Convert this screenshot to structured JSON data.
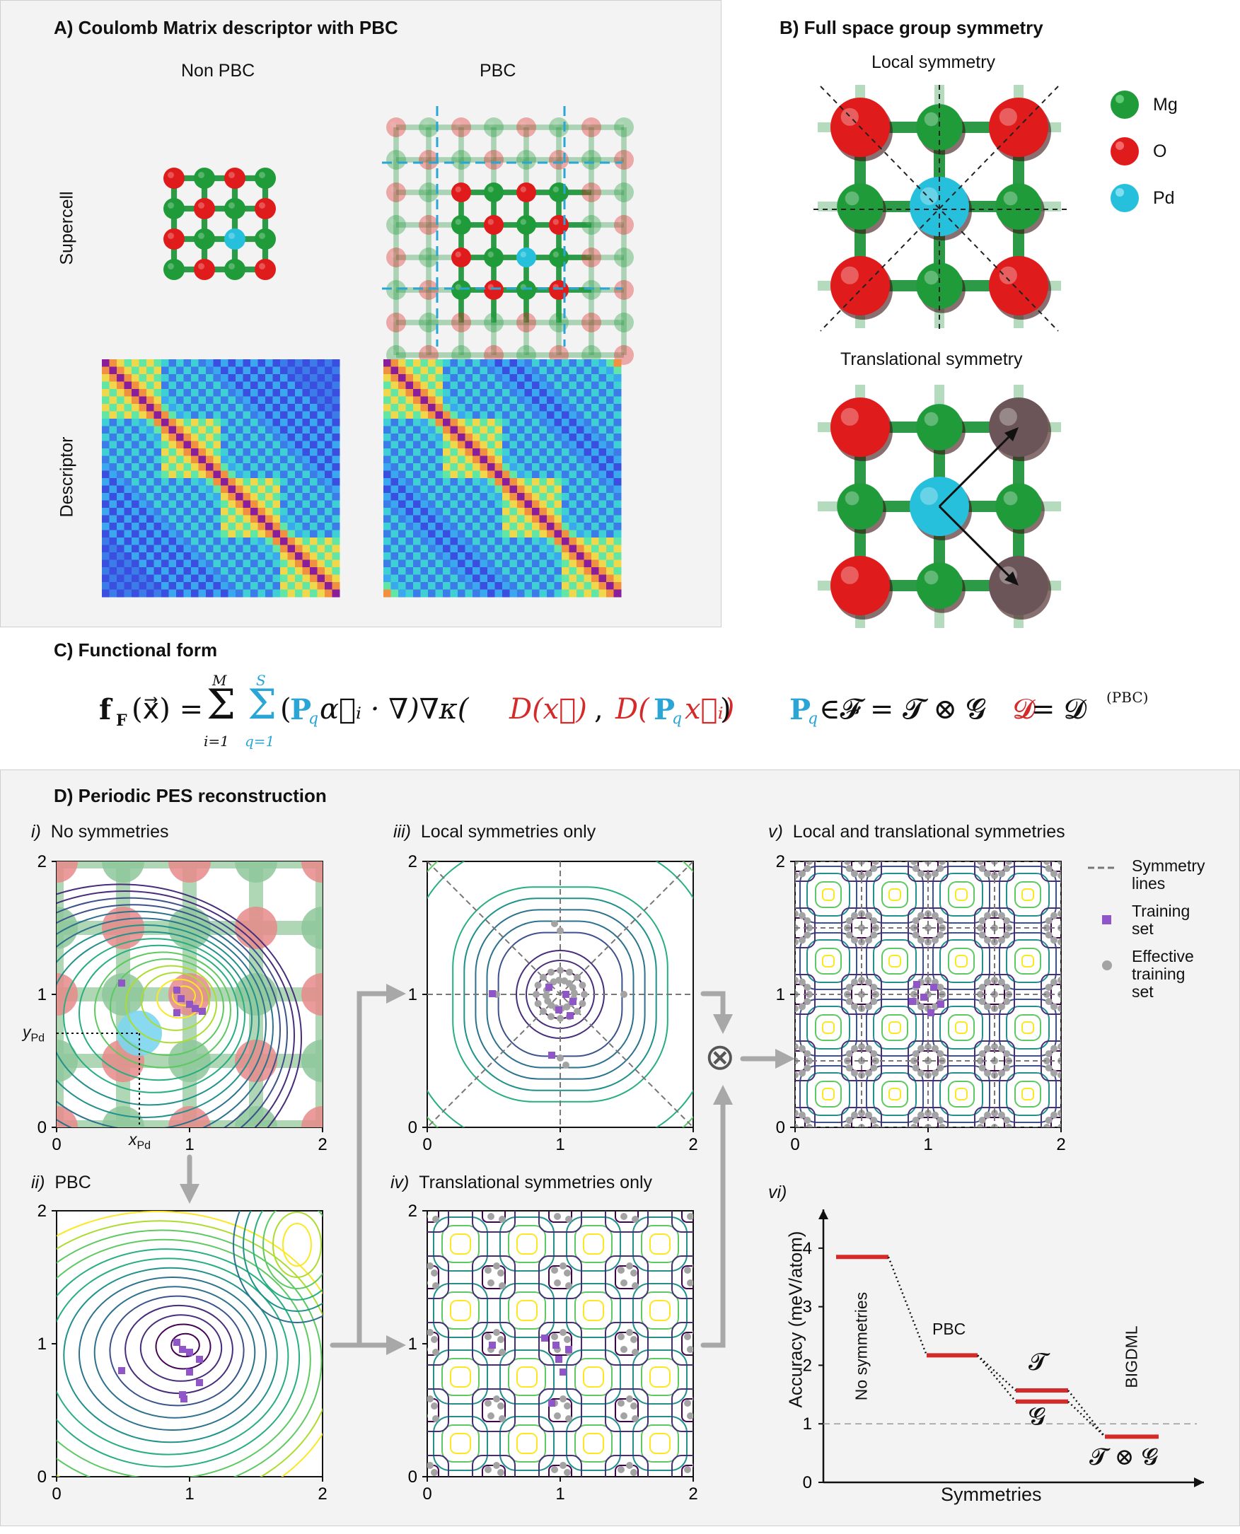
{
  "panelA": {
    "header": "A)    Coulomb Matrix descriptor with PBC",
    "col_nonpbc": "Non PBC",
    "col_pbc": "PBC",
    "row_supercell": "Supercell",
    "row_descriptor": "Descriptor"
  },
  "panelB": {
    "header": "B)    Full space group symmetry",
    "local": "Local symmetry",
    "translational": "Translational symmetry",
    "legend": [
      {
        "label": "Mg",
        "color": "#1f9b3a"
      },
      {
        "label": "O",
        "color": "#e01b1b"
      },
      {
        "label": "Pd",
        "color": "#27c0dc"
      }
    ]
  },
  "panelC": {
    "header": "C)    Functional form",
    "eq_main": "𝐟𝐅(x⃗) = Σᵢ₌₁ᴹ Σq=1ˢ (Pq α⃗ᵢ · ∇)∇κ(D(x⃗), D(Pq x⃗ᵢ))",
    "eq_lhs": "f",
    "eq_lhs_sub": "F",
    "eq_arg": "(x⃗) =",
    "sum1_top": "M",
    "sum1_bot": "i=1",
    "sum2_top": "S",
    "sum2_bot": "q=1",
    "eq_body1": "(",
    "eq_P": "P",
    "eq_q": "q",
    "eq_body2": "α⃗ᵢ · ∇)∇κ(",
    "eq_D1": "D(x⃗)",
    "eq_comma": ", ",
    "eq_D2a": "D(",
    "eq_D2b": "x⃗ᵢ)",
    "eq_close": ")",
    "eq_set": "∈𝓕 = 𝓣 ⊗ 𝓖",
    "eq_D": "𝓓",
    "eq_D_rhs": " = 𝓓",
    "eq_D_sup": "(PBC)"
  },
  "panelD": {
    "header": "D)    Periodic PES reconstruction",
    "sub_i": "i)",
    "title_i": "No symmetries",
    "sub_ii": "ii)",
    "title_ii": "PBC",
    "sub_iii": "iii)",
    "title_iii": "Local symmetries only",
    "sub_iv": "iv)",
    "title_iv": "Translational symmetries only",
    "sub_v": "v)",
    "title_v": "Local and translational symmetries",
    "sub_vi": "vi)",
    "x_pd": "x",
    "y_pd": "y",
    "pd_sub": "Pd",
    "ticks": [
      "0",
      "1",
      "2"
    ],
    "otimes": "⊗",
    "legend": [
      {
        "label": "Symmetry\nlines"
      },
      {
        "label": "Training\nset"
      },
      {
        "label": "Effective\ntraining\nset"
      }
    ],
    "legend_sym_1": "Symmetry",
    "legend_sym_2": "lines",
    "legend_train_1": "Training",
    "legend_train_2": "set",
    "legend_eff_1": "Effective",
    "legend_eff_2": "training",
    "legend_eff_3": "set"
  },
  "chart_data": {
    "type": "bar",
    "ylabel": "Accuracy (meV/atom)",
    "xlabel": "Symmetries",
    "ylim": [
      0,
      4.3
    ],
    "yticks": [
      "0",
      "1",
      "2",
      "3",
      "4"
    ],
    "categories": [
      "No symmetries",
      "PBC",
      "𝓣",
      "𝓖",
      "𝓣 ⊗ 𝓖"
    ],
    "values": [
      3.85,
      2.17,
      1.57,
      1.38,
      0.78
    ],
    "category_labels": [
      "No symmetries",
      "PBC",
      "𝓣",
      "𝓖",
      "BIGDML"
    ],
    "bottom_label": "𝓣 ⊗ 𝓖",
    "reference_line": 1.0,
    "bar_color": "#d42a2a"
  }
}
